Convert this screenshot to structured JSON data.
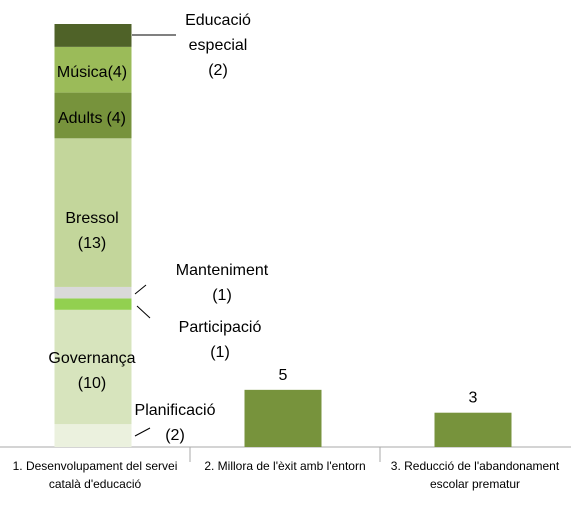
{
  "chart_data": {
    "type": "stacked-bar",
    "categories": [
      "1. Desenvolupament del servei català d'educació",
      "2. Millora de l'èxit amb l'entorn",
      "3. Reducció de l'abandonament escolar prematur"
    ],
    "ylim": [
      0,
      37
    ],
    "series": [
      {
        "name": "Planificació",
        "color": "#ebf1de",
        "values": [
          2,
          null,
          null
        ],
        "value_labels": [
          "(2)",
          null,
          null
        ]
      },
      {
        "name": "Governança",
        "color": "#d7e4bd",
        "values": [
          10,
          null,
          null
        ],
        "value_labels": [
          "(10)",
          null,
          null
        ]
      },
      {
        "name": "Participació",
        "color": "#92d050",
        "values": [
          1,
          null,
          null
        ],
        "value_labels": [
          "(1)",
          null,
          null
        ]
      },
      {
        "name": "Manteniment",
        "color": "#d9d9d9",
        "values": [
          1,
          null,
          null
        ],
        "value_labels": [
          "(1)",
          null,
          null
        ]
      },
      {
        "name": "Bressol",
        "color": "#c3d69b",
        "values": [
          13,
          null,
          null
        ],
        "value_labels": [
          "(13)",
          null,
          null
        ]
      },
      {
        "name": "Adults",
        "color": "#77933c",
        "values": [
          4,
          null,
          null
        ],
        "value_labels": [
          "(4)",
          null,
          null
        ]
      },
      {
        "name": "Música",
        "color": "#9bbb59",
        "values": [
          4,
          null,
          null
        ],
        "value_labels": [
          "(4)",
          null,
          null
        ]
      },
      {
        "name": "Educació especial",
        "color": "#4f6228",
        "values": [
          2,
          null,
          null
        ],
        "value_labels": [
          "(2)",
          null,
          null
        ]
      },
      {
        "color": "#77933c",
        "values": [
          null,
          5,
          3
        ]
      }
    ]
  }
}
